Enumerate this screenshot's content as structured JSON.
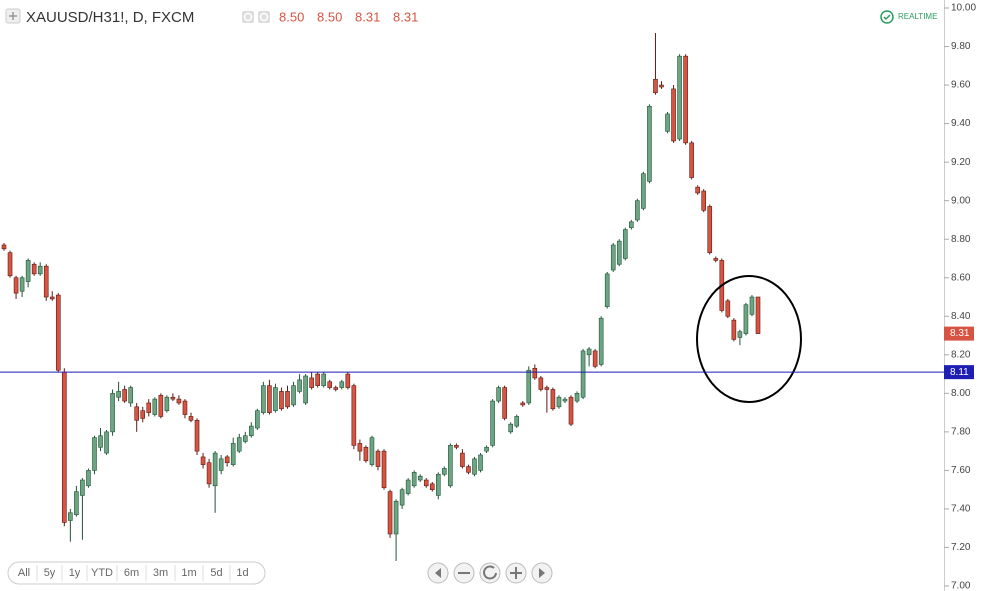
{
  "chart_data": {
    "type": "candlestick",
    "title": "XAUUSD/H31!, D, FXCM",
    "ohlc_labels": [
      "8.50",
      "8.50",
      "8.31",
      "8.31"
    ],
    "realtime": "REALTIME",
    "up_color": "#6ba583",
    "down_color": "#d75442",
    "open": [
      8.77,
      8.73,
      8.6,
      8.53,
      8.58,
      8.67,
      8.62,
      8.66,
      8.5,
      8.51,
      8.11,
      7.34,
      7.37,
      7.47,
      7.52,
      7.6,
      7.72,
      7.69,
      7.8,
      7.98,
      8.02,
      7.95,
      7.93,
      7.91,
      7.95,
      7.89,
      7.99,
      7.91,
      7.98,
      7.97,
      7.96,
      7.88,
      7.86,
      7.67,
      7.64,
      7.52,
      7.6,
      7.67,
      7.63,
      7.7,
      7.75,
      7.78,
      7.82,
      7.9,
      8.04,
      7.91,
      8.01,
      8.01,
      7.94,
      8.01,
      7.95,
      8.08,
      8.1,
      8.04,
      8.06,
      8.03,
      8.03,
      8.1,
      8.04,
      7.74,
      7.72,
      7.63,
      7.7,
      7.7,
      7.49,
      7.27,
      7.42,
      7.48,
      7.52,
      7.55,
      7.55,
      7.53,
      7.47,
      7.58,
      7.52,
      7.73,
      7.69,
      7.62,
      7.58,
      7.6,
      7.7,
      7.73,
      7.96,
      8.03,
      7.8,
      7.83,
      7.95,
      7.95,
      8.13,
      8.08,
      8.03,
      8.02,
      7.93,
      7.96,
      7.98,
      7.96,
      7.98,
      8.2,
      8.22,
      8.15,
      8.45,
      8.64,
      8.67,
      8.7,
      8.86,
      8.9,
      8.96,
      9.1,
      9.63,
      9.6,
      9.36,
      9.58,
      9.32,
      9.75,
      9.3,
      9.07,
      9.05,
      8.97,
      8.7,
      8.69,
      8.48,
      8.38,
      8.29,
      8.31,
      8.41,
      8.5
    ],
    "high": [
      8.78,
      8.74,
      8.61,
      8.61,
      8.7,
      8.68,
      8.68,
      8.67,
      8.53,
      8.52,
      8.13,
      7.4,
      7.52,
      7.56,
      7.61,
      7.78,
      7.82,
      7.81,
      8.02,
      8.06,
      8.04,
      8.04,
      7.95,
      7.93,
      7.97,
      7.98,
      8.0,
      7.99,
      8.0,
      7.99,
      7.97,
      7.9,
      7.87,
      7.69,
      7.66,
      7.7,
      7.68,
      7.68,
      7.77,
      7.79,
      7.8,
      7.85,
      7.92,
      8.06,
      8.07,
      8.05,
      8.03,
      8.04,
      8.06,
      8.1,
      8.1,
      8.11,
      8.11,
      8.11,
      8.07,
      8.04,
      8.07,
      8.11,
      8.05,
      7.76,
      7.73,
      7.78,
      7.71,
      7.71,
      7.5,
      7.45,
      7.51,
      7.56,
      7.6,
      7.58,
      7.56,
      7.54,
      7.59,
      7.62,
      7.74,
      7.74,
      7.71,
      7.63,
      7.67,
      7.69,
      7.73,
      7.97,
      8.04,
      8.04,
      7.85,
      7.89,
      7.96,
      8.14,
      8.15,
      8.09,
      8.04,
      8.03,
      7.99,
      7.98,
      7.99,
      8.01,
      8.23,
      8.24,
      8.23,
      8.4,
      8.63,
      8.78,
      8.8,
      8.86,
      8.9,
      9.01,
      9.15,
      9.5,
      9.87,
      9.62,
      9.46,
      9.6,
      9.76,
      9.76,
      9.31,
      9.08,
      9.06,
      8.98,
      8.71,
      8.7,
      8.49,
      8.39,
      8.33,
      8.47,
      8.51,
      8.5
    ],
    "low": [
      8.74,
      8.6,
      8.49,
      8.5,
      8.55,
      8.61,
      8.61,
      8.48,
      8.48,
      8.11,
      7.31,
      7.23,
      7.36,
      7.24,
      7.51,
      7.58,
      7.7,
      7.68,
      7.78,
      7.96,
      7.95,
      7.93,
      7.8,
      7.85,
      7.88,
      7.88,
      7.87,
      7.9,
      7.96,
      7.94,
      7.87,
      7.85,
      7.68,
      7.61,
      7.51,
      7.38,
      7.58,
      7.62,
      7.62,
      7.69,
      7.74,
      7.77,
      7.81,
      7.89,
      7.89,
      7.9,
      7.91,
      7.92,
      7.93,
      8.0,
      7.94,
      8.02,
      8.03,
      8.03,
      8.02,
      8.01,
      8.02,
      8.02,
      7.71,
      7.65,
      7.64,
      7.62,
      7.6,
      7.5,
      7.25,
      7.13,
      7.4,
      7.47,
      7.51,
      7.54,
      7.51,
      7.49,
      7.45,
      7.57,
      7.51,
      7.71,
      7.61,
      7.58,
      7.57,
      7.59,
      7.69,
      7.72,
      7.95,
      7.86,
      7.79,
      7.82,
      7.93,
      7.94,
      8.07,
      8.01,
      7.9,
      7.91,
      7.92,
      7.95,
      7.83,
      7.95,
      7.97,
      8.14,
      8.13,
      8.14,
      8.44,
      8.63,
      8.66,
      8.69,
      8.85,
      8.89,
      8.95,
      9.09,
      9.55,
      9.58,
      9.35,
      9.3,
      9.31,
      9.29,
      9.11,
      9.03,
      8.94,
      8.72,
      8.68,
      8.42,
      8.39,
      8.27,
      8.25,
      8.3,
      8.4,
      8.31
    ],
    "close": [
      8.75,
      8.61,
      8.52,
      8.6,
      8.69,
      8.62,
      8.66,
      8.5,
      8.49,
      8.12,
      7.33,
      7.38,
      7.49,
      7.55,
      7.6,
      7.77,
      7.78,
      7.8,
      8.0,
      8.01,
      7.96,
      8.03,
      7.86,
      7.87,
      7.9,
      7.97,
      7.88,
      7.98,
      7.97,
      7.95,
      7.89,
      7.86,
      7.7,
      7.63,
      7.53,
      7.69,
      7.66,
      7.64,
      7.74,
      7.77,
      7.78,
      7.83,
      7.91,
      8.04,
      7.9,
      8.03,
      7.92,
      7.93,
      8.04,
      8.07,
      8.09,
      8.03,
      8.04,
      8.1,
      8.03,
      8.02,
      8.06,
      8.03,
      7.73,
      7.7,
      7.65,
      7.77,
      7.62,
      7.51,
      7.27,
      7.44,
      7.5,
      7.55,
      7.59,
      7.57,
      7.52,
      7.5,
      7.58,
      7.61,
      7.73,
      7.72,
      7.62,
      7.59,
      7.66,
      7.68,
      7.72,
      7.96,
      8.03,
      7.87,
      7.84,
      7.88,
      7.94,
      8.12,
      8.08,
      8.02,
      8.02,
      7.92,
      7.98,
      7.97,
      7.84,
      8.0,
      8.22,
      8.23,
      8.14,
      8.39,
      8.62,
      8.77,
      8.79,
      8.85,
      8.89,
      9.0,
      9.14,
      9.49,
      9.56,
      9.59,
      9.45,
      9.31,
      9.75,
      9.3,
      9.12,
      9.04,
      8.95,
      8.73,
      8.69,
      8.43,
      8.4,
      8.28,
      8.32,
      8.46,
      8.5,
      8.31
    ],
    "ylim": [
      7.0,
      10.0
    ],
    "yticks": [
      {
        "value": 7.0,
        "label": "7.00"
      },
      {
        "value": 7.2,
        "label": "7.20"
      },
      {
        "value": 7.4,
        "label": "7.40"
      },
      {
        "value": 7.6,
        "label": "7.60"
      },
      {
        "value": 7.8,
        "label": "7.80"
      },
      {
        "value": 8.0,
        "label": "8.00"
      },
      {
        "value": 8.2,
        "label": "8.20"
      },
      {
        "value": 8.4,
        "label": "8.40"
      },
      {
        "value": 8.6,
        "label": "8.60"
      },
      {
        "value": 8.8,
        "label": "8.80"
      },
      {
        "value": 9.0,
        "label": "9.00"
      },
      {
        "value": 9.2,
        "label": "9.20"
      },
      {
        "value": 9.4,
        "label": "9.40"
      },
      {
        "value": 9.6,
        "label": "9.60"
      },
      {
        "value": 9.8,
        "label": "9.80"
      },
      {
        "value": 10.0,
        "label": "10.00"
      }
    ],
    "hline": {
      "value": 8.11,
      "label": "8.11",
      "color": "#1e1eb4"
    },
    "last_price": {
      "value": 8.31,
      "label": "8.31"
    }
  },
  "toolbar": {
    "ranges": [
      "All",
      "5y",
      "1y",
      "YTD",
      "6m",
      "3m",
      "1m",
      "5d",
      "1d"
    ]
  }
}
